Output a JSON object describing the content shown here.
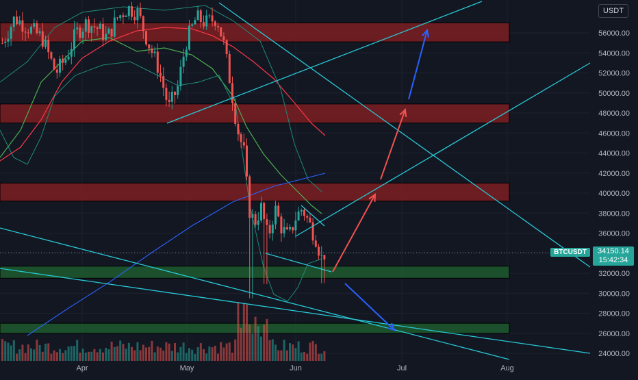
{
  "symbol_label": "BTCUSDT",
  "currency": "USDT",
  "last_price": "34150.14",
  "countdown": "15:42:34",
  "colors": {
    "background": "#131722",
    "grid": "#1e2230",
    "candle_up": "#26a69a",
    "candle_down": "#ef5350",
    "trendline": "#27c9d6",
    "resistance_zone": "#7b1e22",
    "support_zone": "#1f5a2e",
    "arrow_bull": "#ef5350",
    "arrow_bear": "#2962ff",
    "ma_slow": "#f23645",
    "ma_fast": "#4caf50",
    "ma_long": "#2962ff",
    "bollinger": "#1e8c78"
  },
  "chart_data": {
    "type": "candlestick",
    "y_axis": {
      "min": 23000,
      "max": 58000,
      "ticks": [
        "24000.00",
        "26000.00",
        "28000.00",
        "30000.00",
        "32000.00",
        "34000.00",
        "36000.00",
        "38000.00",
        "40000.00",
        "42000.00",
        "44000.00",
        "46000.00",
        "48000.00",
        "50000.00",
        "52000.00",
        "54000.00",
        "56000.00"
      ],
      "tick_values": [
        24000,
        26000,
        28000,
        30000,
        32000,
        34000,
        36000,
        38000,
        40000,
        42000,
        44000,
        46000,
        48000,
        50000,
        52000,
        54000,
        56000
      ]
    },
    "x_axis": {
      "labels": [
        "Apr",
        "May",
        "Jun",
        "Jul",
        "Aug"
      ]
    },
    "current_price": 34150.14,
    "zones": [
      {
        "kind": "resistance",
        "from": 55100,
        "to": 57000
      },
      {
        "kind": "resistance",
        "from": 47000,
        "to": 48900
      },
      {
        "kind": "resistance",
        "from": 39200,
        "to": 41000
      },
      {
        "kind": "support",
        "from": 31500,
        "to": 32700
      },
      {
        "kind": "support",
        "from": 26000,
        "to": 27000
      }
    ]
  }
}
